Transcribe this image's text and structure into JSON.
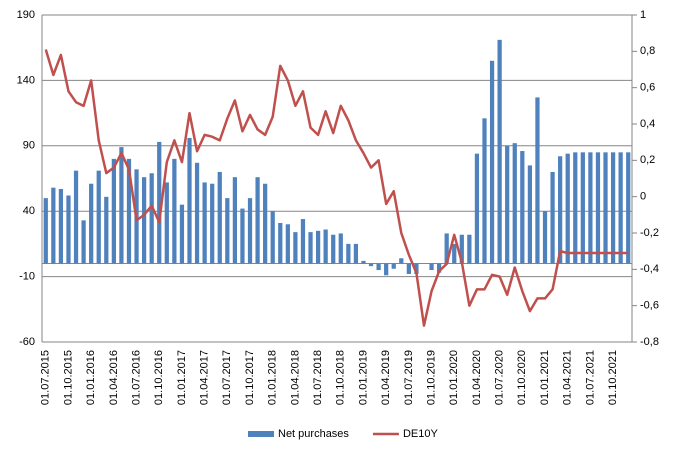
{
  "chart_data": {
    "type": "bar_line",
    "categories": [
      "01.07.2015",
      null,
      null,
      "01.10.2015",
      null,
      null,
      "01.01.2016",
      null,
      null,
      "01.04.2016",
      null,
      null,
      "01.07.2016",
      null,
      null,
      "01.10.2016",
      null,
      null,
      "01.01.2017",
      null,
      null,
      "01.04.2017",
      null,
      null,
      "01.07.2017",
      null,
      null,
      "01.10.2017",
      null,
      null,
      "01.01.2018",
      null,
      null,
      "01.04.2018",
      null,
      null,
      "01.07.2018",
      null,
      null,
      "01.10.2018",
      null,
      null,
      "01.01.2019",
      null,
      null,
      "01.04.2019",
      null,
      null,
      "01.07.2019",
      null,
      null,
      "01.10.2019",
      null,
      null,
      "01.01.2020",
      null,
      null,
      "01.04.2020",
      null,
      null,
      "01.07.2020",
      null,
      null,
      "01.10.2020",
      null,
      null,
      "01.01.2021",
      null,
      null,
      "01.04.2021",
      null,
      null,
      "01.07.2021",
      null,
      null,
      "01.10.2021",
      null,
      null
    ],
    "series": [
      {
        "name": "Net purchases",
        "color": "#4f81bd",
        "type": "bar",
        "values": [
          50,
          58,
          57,
          52,
          71,
          33,
          61,
          71,
          51,
          80,
          89,
          80,
          72,
          66,
          69,
          93,
          62,
          80,
          45,
          96,
          77,
          62,
          61,
          70,
          50,
          66,
          42,
          50,
          66,
          61,
          40,
          31,
          30,
          24,
          34,
          24,
          25,
          26,
          22,
          23,
          15,
          15,
          2,
          -2,
          -5,
          -9,
          -4,
          4,
          -8,
          -8,
          0,
          -5,
          -7,
          23,
          15,
          22,
          22,
          84,
          111,
          155,
          171,
          90,
          92,
          86,
          75,
          127,
          40,
          70,
          82,
          84,
          85,
          85,
          85,
          85,
          85,
          85,
          85,
          85
        ]
      },
      {
        "name": "DE10Y",
        "color": "#c0504d",
        "type": "line",
        "axis": "y2",
        "values": [
          0.81,
          0.67,
          0.78,
          0.58,
          0.52,
          0.5,
          0.64,
          0.31,
          0.13,
          0.16,
          0.24,
          0.15,
          -0.13,
          -0.1,
          -0.05,
          -0.14,
          0.19,
          0.31,
          0.19,
          0.46,
          0.25,
          0.34,
          0.33,
          0.31,
          0.43,
          0.53,
          0.36,
          0.45,
          0.37,
          0.34,
          0.44,
          0.72,
          0.64,
          0.5,
          0.58,
          0.38,
          0.34,
          0.47,
          0.35,
          0.5,
          0.42,
          0.31,
          0.24,
          0.16,
          0.2,
          -0.04,
          0.03,
          -0.2,
          -0.32,
          -0.42,
          -0.71,
          -0.52,
          -0.41,
          -0.37,
          -0.21,
          -0.36,
          -0.6,
          -0.51,
          -0.51,
          -0.43,
          -0.44,
          -0.54,
          -0.39,
          -0.52,
          -0.63,
          -0.56,
          -0.56,
          -0.51,
          -0.3,
          -0.31,
          -0.31,
          -0.31,
          -0.31,
          -0.31,
          -0.31,
          -0.31,
          -0.31,
          -0.31
        ]
      }
    ],
    "ylim": [
      -60,
      190
    ],
    "yticks": [
      -60,
      -10,
      40,
      90,
      140,
      190
    ],
    "y2lim": [
      -0.8,
      1
    ],
    "y2ticks": [
      {
        "value": -0.8,
        "label": "-0,8"
      },
      {
        "value": -0.6,
        "label": "-0,6"
      },
      {
        "value": -0.4,
        "label": "-0,4"
      },
      {
        "value": -0.2,
        "label": "-0,2"
      },
      0,
      {
        "value": 0.2,
        "label": "0,2"
      },
      {
        "value": 0.4,
        "label": "0,4"
      },
      {
        "value": 0.6,
        "label": "0,6"
      },
      {
        "value": 0.8,
        "label": "0,8"
      },
      1
    ],
    "grid": true,
    "legend": "bottom"
  }
}
